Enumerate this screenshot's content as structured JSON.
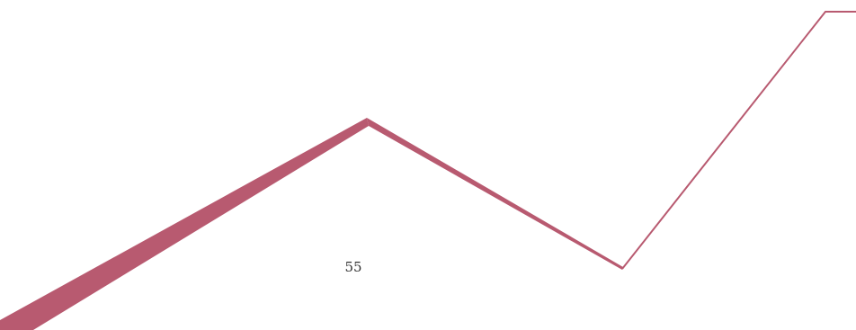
{
  "page": {
    "page_number": "55"
  },
  "decoration": {
    "line_color": "#b85a70",
    "shape": "zigzag-line"
  }
}
